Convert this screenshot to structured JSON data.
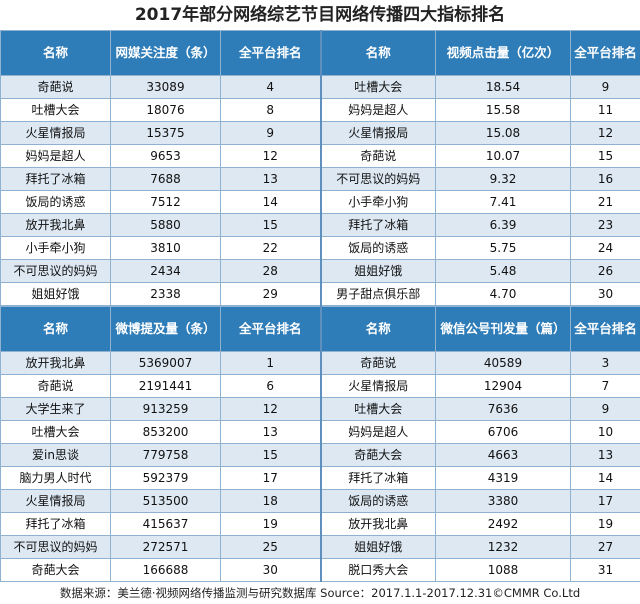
{
  "title": "2017年部分网络综艺节目网络传播四大指标排名",
  "source": "数据来源：美兰德·视频网络传播监测与研究数据库 Source：2017.1.1-2017.12.31©CMMR Co.Ltd",
  "top": {
    "headers": [
      "名称",
      "网媒关注度（条）",
      "全平台排名",
      "名称",
      "视频点击量（亿次）",
      "全平台排名"
    ],
    "rows": [
      [
        "奇葩说",
        "33089",
        "4",
        "吐槽大会",
        "18.54",
        "9"
      ],
      [
        "吐槽大会",
        "18076",
        "8",
        "妈妈是超人",
        "15.58",
        "11"
      ],
      [
        "火星情报局",
        "15375",
        "9",
        "火星情报局",
        "15.08",
        "12"
      ],
      [
        "妈妈是超人",
        "9653",
        "12",
        "奇葩说",
        "10.07",
        "15"
      ],
      [
        "拜托了冰箱",
        "7688",
        "13",
        "不可思议的妈妈",
        "9.32",
        "16"
      ],
      [
        "饭局的诱惑",
        "7512",
        "14",
        "小手牵小狗",
        "7.41",
        "21"
      ],
      [
        "放开我北鼻",
        "5880",
        "15",
        "拜托了冰箱",
        "6.39",
        "23"
      ],
      [
        "小手牵小狗",
        "3810",
        "22",
        "饭局的诱惑",
        "5.75",
        "24"
      ],
      [
        "不可思议的妈妈",
        "2434",
        "28",
        "姐姐好饿",
        "5.48",
        "26"
      ],
      [
        "姐姐好饿",
        "2338",
        "29",
        "男子甜点俱乐部",
        "4.70",
        "30"
      ]
    ]
  },
  "bottom": {
    "headers": [
      "名称",
      "微博提及量（条）",
      "全平台排名",
      "名称",
      "微信公号刊发量（篇）",
      "全平台排名"
    ],
    "rows": [
      [
        "放开我北鼻",
        "5369007",
        "1",
        "奇葩说",
        "40589",
        "3"
      ],
      [
        "奇葩说",
        "2191441",
        "6",
        "火星情报局",
        "12904",
        "7"
      ],
      [
        "大学生来了",
        "913259",
        "12",
        "吐槽大会",
        "7636",
        "9"
      ],
      [
        "吐槽大会",
        "853200",
        "13",
        "妈妈是超人",
        "6706",
        "10"
      ],
      [
        "爱in思谈",
        "779758",
        "15",
        "奇葩大会",
        "4663",
        "13"
      ],
      [
        "脑力男人时代",
        "592379",
        "17",
        "拜托了冰箱",
        "4319",
        "14"
      ],
      [
        "火星情报局",
        "513500",
        "18",
        "饭局的诱惑",
        "3380",
        "17"
      ],
      [
        "拜托了冰箱",
        "415637",
        "19",
        "放开我北鼻",
        "2492",
        "19"
      ],
      [
        "不可思议的妈妈",
        "272571",
        "25",
        "姐姐好饿",
        "1232",
        "27"
      ],
      [
        "奇葩大会",
        "166688",
        "30",
        "脱口秀大会",
        "1088",
        "31"
      ]
    ]
  }
}
